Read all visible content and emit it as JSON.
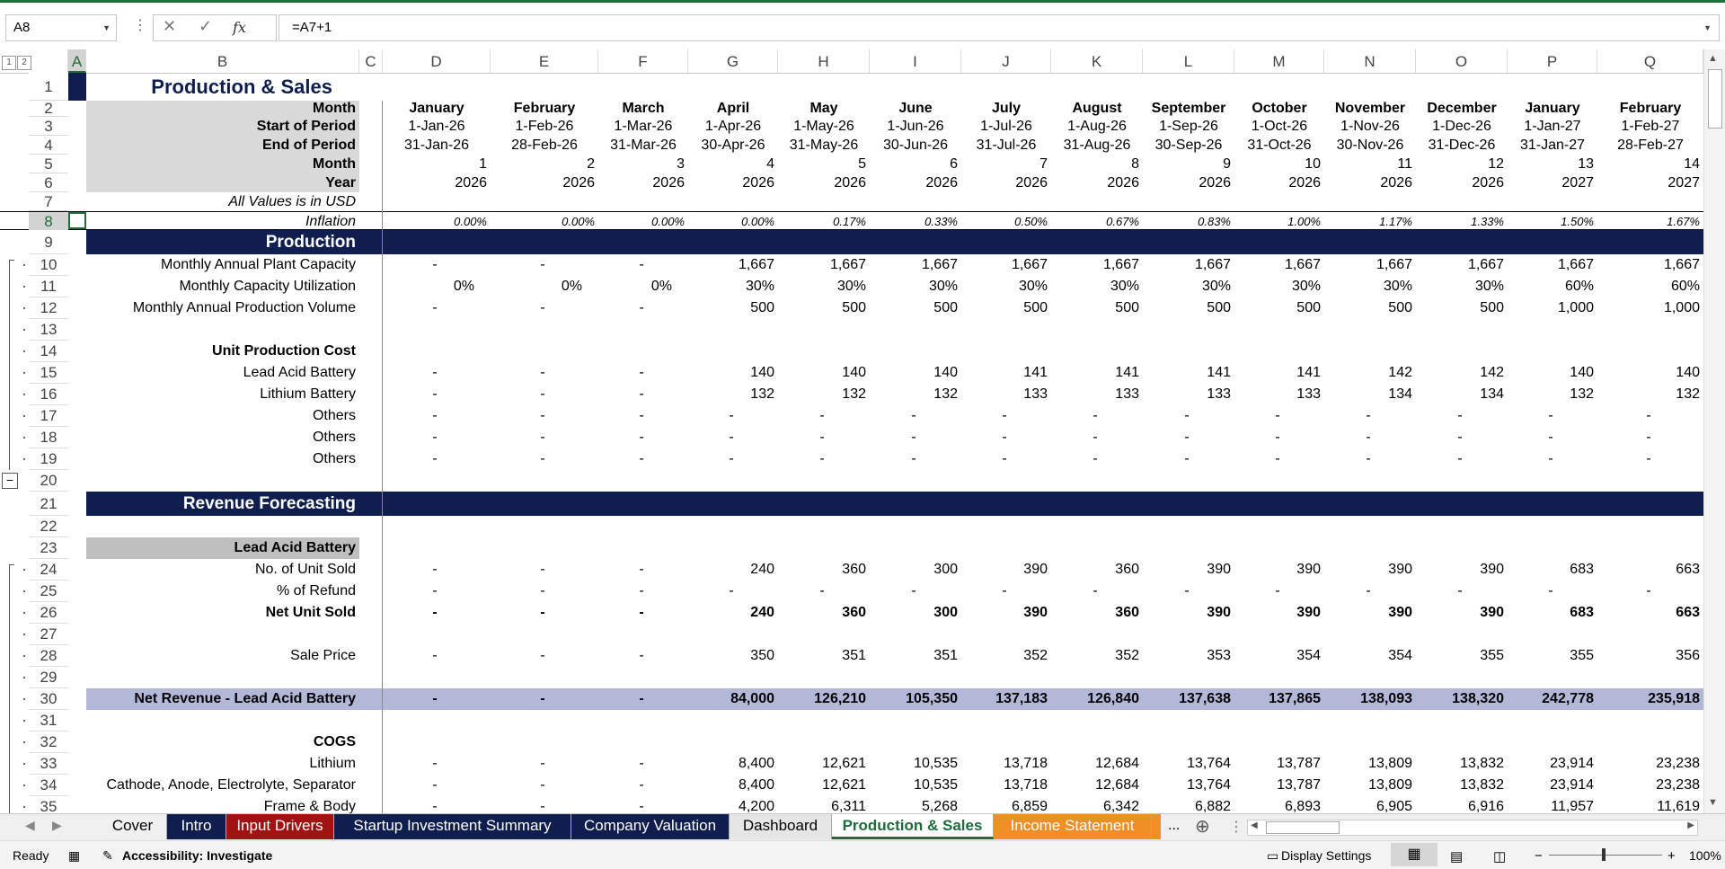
{
  "formula_bar": {
    "name_box": "A8",
    "formula": "=A7+1"
  },
  "colors": {
    "navy": "#0f1e4f",
    "gray_band": "#d9d9d9",
    "lavender": "#b4b8d8",
    "excel_green": "#1e6b3c"
  },
  "column_headers": [
    "A",
    "B",
    "C",
    "D",
    "E",
    "F",
    "G",
    "H",
    "I",
    "J",
    "K",
    "L",
    "M",
    "N",
    "O",
    "P",
    "Q"
  ],
  "rows": [
    {
      "n": "1",
      "b": "Production & Sales",
      "v": []
    },
    {
      "n": "2",
      "b": "Month",
      "v": [
        "January",
        "February",
        "March",
        "April",
        "May",
        "June",
        "July",
        "August",
        "September",
        "October",
        "November",
        "December",
        "January",
        "February"
      ]
    },
    {
      "n": "3",
      "b": "Start of Period",
      "v": [
        "1-Jan-26",
        "1-Feb-26",
        "1-Mar-26",
        "1-Apr-26",
        "1-May-26",
        "1-Jun-26",
        "1-Jul-26",
        "1-Aug-26",
        "1-Sep-26",
        "1-Oct-26",
        "1-Nov-26",
        "1-Dec-26",
        "1-Jan-27",
        "1-Feb-27"
      ]
    },
    {
      "n": "4",
      "b": "End of Period",
      "v": [
        "31-Jan-26",
        "28-Feb-26",
        "31-Mar-26",
        "30-Apr-26",
        "31-May-26",
        "30-Jun-26",
        "31-Jul-26",
        "31-Aug-26",
        "30-Sep-26",
        "31-Oct-26",
        "30-Nov-26",
        "31-Dec-26",
        "31-Jan-27",
        "28-Feb-27"
      ]
    },
    {
      "n": "5",
      "b": "Month",
      "v": [
        "1",
        "2",
        "3",
        "4",
        "5",
        "6",
        "7",
        "8",
        "9",
        "10",
        "11",
        "12",
        "13",
        "14"
      ]
    },
    {
      "n": "6",
      "b": "Year",
      "v": [
        "2026",
        "2026",
        "2026",
        "2026",
        "2026",
        "2026",
        "2026",
        "2026",
        "2026",
        "2026",
        "2026",
        "2026",
        "2027",
        "2027"
      ]
    },
    {
      "n": "7",
      "b": "All Values is in USD",
      "v": []
    },
    {
      "n": "8",
      "b": "Inflation",
      "v": [
        "0.00%",
        "0.00%",
        "0.00%",
        "0.00%",
        "0.17%",
        "0.33%",
        "0.50%",
        "0.67%",
        "0.83%",
        "1.00%",
        "1.17%",
        "1.33%",
        "1.50%",
        "1.67%"
      ]
    },
    {
      "n": "9",
      "b": "Production",
      "v": []
    },
    {
      "n": "10",
      "b": "Monthly Annual Plant Capacity",
      "v": [
        "-",
        "-",
        "-",
        "1,667",
        "1,667",
        "1,667",
        "1,667",
        "1,667",
        "1,667",
        "1,667",
        "1,667",
        "1,667",
        "1,667",
        "1,667"
      ]
    },
    {
      "n": "11",
      "b": "Monthly Capacity Utilization",
      "v": [
        "0%",
        "0%",
        "0%",
        "30%",
        "30%",
        "30%",
        "30%",
        "30%",
        "30%",
        "30%",
        "30%",
        "30%",
        "60%",
        "60%"
      ]
    },
    {
      "n": "12",
      "b": "Monthly Annual Production Volume",
      "v": [
        "-",
        "-",
        "-",
        "500",
        "500",
        "500",
        "500",
        "500",
        "500",
        "500",
        "500",
        "500",
        "1,000",
        "1,000"
      ]
    },
    {
      "n": "13",
      "b": "",
      "v": []
    },
    {
      "n": "14",
      "b": "Unit Production Cost",
      "v": []
    },
    {
      "n": "15",
      "b": "Lead Acid Battery",
      "v": [
        "-",
        "-",
        "-",
        "140",
        "140",
        "140",
        "141",
        "141",
        "141",
        "141",
        "142",
        "142",
        "140",
        "140"
      ]
    },
    {
      "n": "16",
      "b": "Lithium Battery",
      "v": [
        "-",
        "-",
        "-",
        "132",
        "132",
        "132",
        "133",
        "133",
        "133",
        "133",
        "134",
        "134",
        "132",
        "132"
      ]
    },
    {
      "n": "17",
      "b": "Others",
      "v": [
        "-",
        "-",
        "-",
        "-",
        "-",
        "-",
        "-",
        "-",
        "-",
        "-",
        "-",
        "-",
        "-",
        "-"
      ]
    },
    {
      "n": "18",
      "b": "Others",
      "v": [
        "-",
        "-",
        "-",
        "-",
        "-",
        "-",
        "-",
        "-",
        "-",
        "-",
        "-",
        "-",
        "-",
        "-"
      ]
    },
    {
      "n": "19",
      "b": "Others",
      "v": [
        "-",
        "-",
        "-",
        "-",
        "-",
        "-",
        "-",
        "-",
        "-",
        "-",
        "-",
        "-",
        "-",
        "-"
      ]
    },
    {
      "n": "20",
      "b": "",
      "v": []
    },
    {
      "n": "21",
      "b": "Revenue Forecasting",
      "v": []
    },
    {
      "n": "22",
      "b": "",
      "v": []
    },
    {
      "n": "23",
      "b": "Lead Acid Battery",
      "v": []
    },
    {
      "n": "24",
      "b": "No. of Unit Sold",
      "v": [
        "-",
        "-",
        "-",
        "240",
        "360",
        "300",
        "390",
        "360",
        "390",
        "390",
        "390",
        "390",
        "683",
        "663"
      ]
    },
    {
      "n": "25",
      "b": "% of Refund",
      "v": [
        "-",
        "-",
        "-",
        "-",
        "-",
        "-",
        "-",
        "-",
        "-",
        "-",
        "-",
        "-",
        "-",
        "-"
      ]
    },
    {
      "n": "26",
      "b": "Net Unit Sold",
      "v": [
        "-",
        "-",
        "-",
        "240",
        "360",
        "300",
        "390",
        "360",
        "390",
        "390",
        "390",
        "390",
        "683",
        "663"
      ]
    },
    {
      "n": "27",
      "b": "",
      "v": []
    },
    {
      "n": "28",
      "b": "Sale Price",
      "v": [
        "-",
        "-",
        "-",
        "350",
        "351",
        "351",
        "352",
        "352",
        "353",
        "354",
        "354",
        "355",
        "355",
        "356"
      ]
    },
    {
      "n": "29",
      "b": "",
      "v": []
    },
    {
      "n": "30",
      "b": "Net Revenue - Lead Acid Battery",
      "v": [
        "-",
        "-",
        "-",
        "84,000",
        "126,210",
        "105,350",
        "137,183",
        "126,840",
        "137,638",
        "137,865",
        "138,093",
        "138,320",
        "242,778",
        "235,918"
      ]
    },
    {
      "n": "31",
      "b": "",
      "v": []
    },
    {
      "n": "32",
      "b": "COGS",
      "v": []
    },
    {
      "n": "33",
      "b": "Lithium",
      "v": [
        "-",
        "-",
        "-",
        "8,400",
        "12,621",
        "10,535",
        "13,718",
        "12,684",
        "13,764",
        "13,787",
        "13,809",
        "13,832",
        "23,914",
        "23,238"
      ]
    },
    {
      "n": "34",
      "b": "Cathode, Anode, Electrolyte, Separator",
      "v": [
        "-",
        "-",
        "-",
        "8,400",
        "12,621",
        "10,535",
        "13,718",
        "12,684",
        "13,764",
        "13,787",
        "13,809",
        "13,832",
        "23,914",
        "23,238"
      ]
    },
    {
      "n": "35",
      "b": "Frame & Body",
      "v": [
        "-",
        "-",
        "-",
        "4,200",
        "6,311",
        "5,268",
        "6,859",
        "6,342",
        "6,882",
        "6,893",
        "6,905",
        "6,916",
        "11,957",
        "11,619"
      ]
    }
  ],
  "sheet_tabs": [
    "Cover",
    "Intro",
    "Input Drivers",
    "Startup Investment Summary",
    "Company Valuation",
    "Dashboard",
    "Production & Sales",
    "Income Statement"
  ],
  "tabs_more": "...",
  "status": {
    "ready": "Ready",
    "accessibility": "Accessibility: Investigate",
    "display_settings": "Display Settings",
    "zoom": "100%"
  }
}
